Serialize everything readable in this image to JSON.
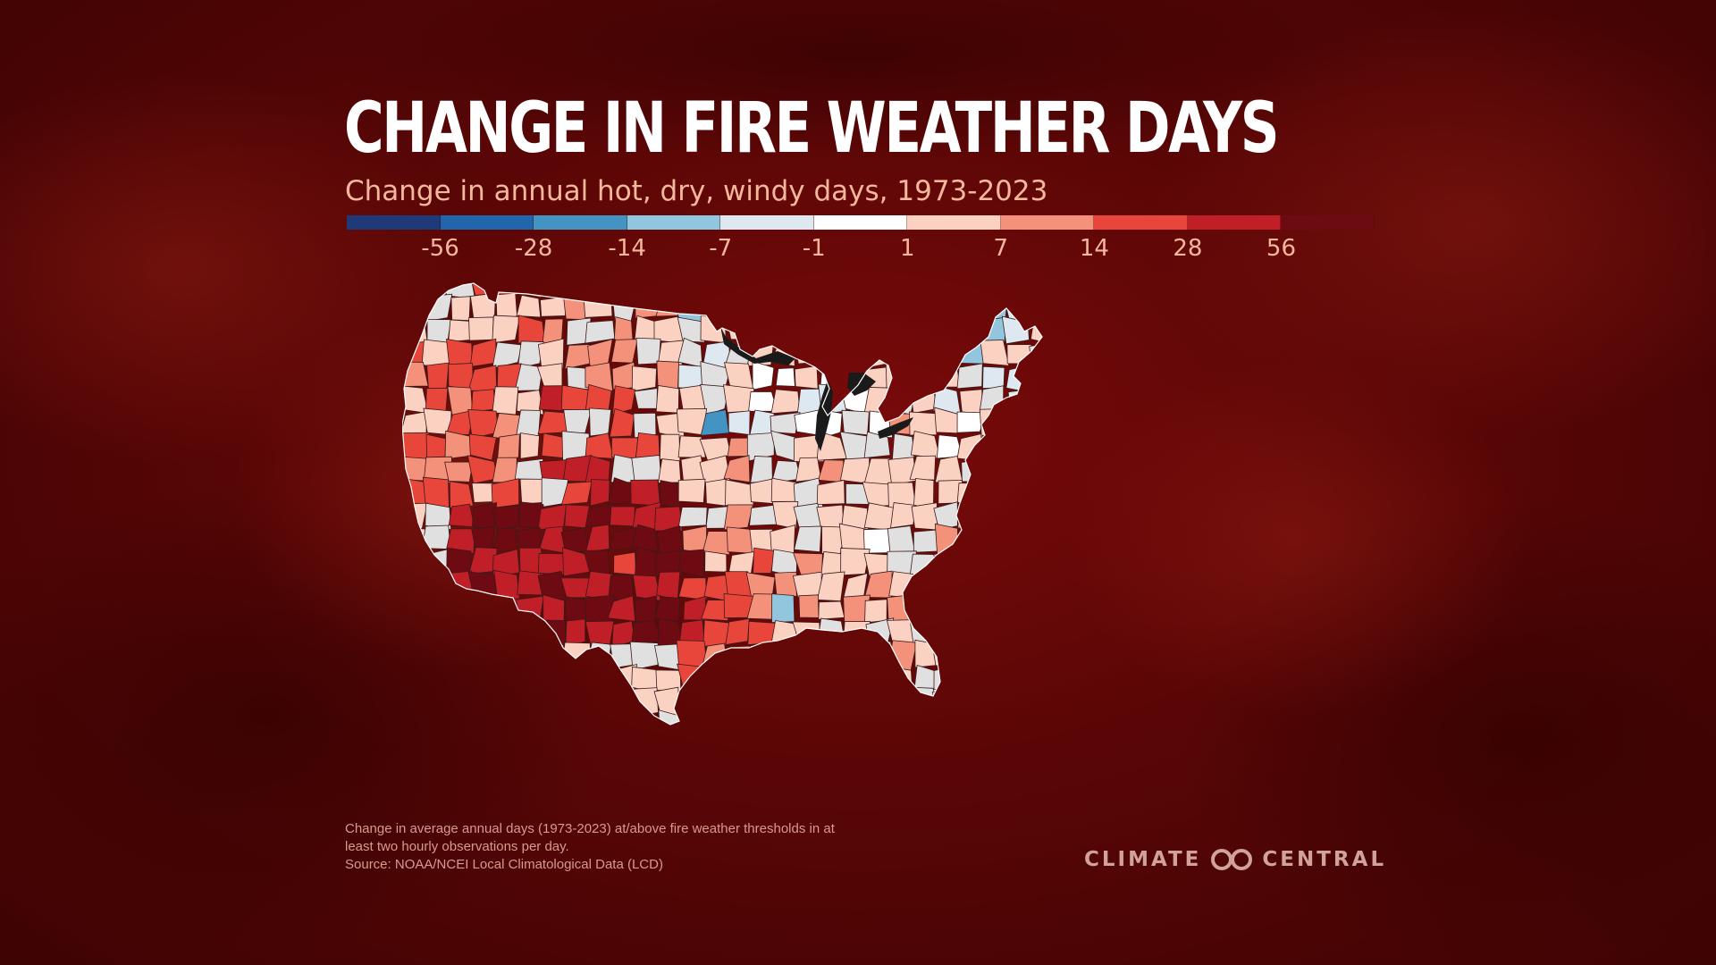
{
  "title": "CHANGE IN FIRE WEATHER DAYS",
  "subtitle": "Change in annual hot, dry, windy days, 1973-2023",
  "legend": {
    "colors": [
      "#1f3a78",
      "#2166ac",
      "#4393c3",
      "#92c5de",
      "#dde8f0",
      "#ffffff",
      "#fbd2c2",
      "#f4917a",
      "#e8463a",
      "#c01f28",
      "#6e0a12"
    ],
    "ticks": [
      "-56",
      "-28",
      "-14",
      "-7",
      "-1",
      "1",
      "7",
      "14",
      "28",
      "56"
    ]
  },
  "regions": {
    "outline_color": "#ffffff",
    "base_color": "#fbd2c2",
    "gray_color": "#e0e0e0",
    "lakes_color": "#1a1a1a"
  },
  "footnote": {
    "line1": "Change in average annual days (1973-2023) at/above fire weather thresholds in at",
    "line2": "least two hourly observations per day.",
    "line3": "Source: NOAA/NCEI Local Climatological Data (LCD)"
  },
  "brand": {
    "left": "CLIMATE",
    "right": "CENTRAL",
    "logo_icon": "climate-central-logo-icon"
  }
}
